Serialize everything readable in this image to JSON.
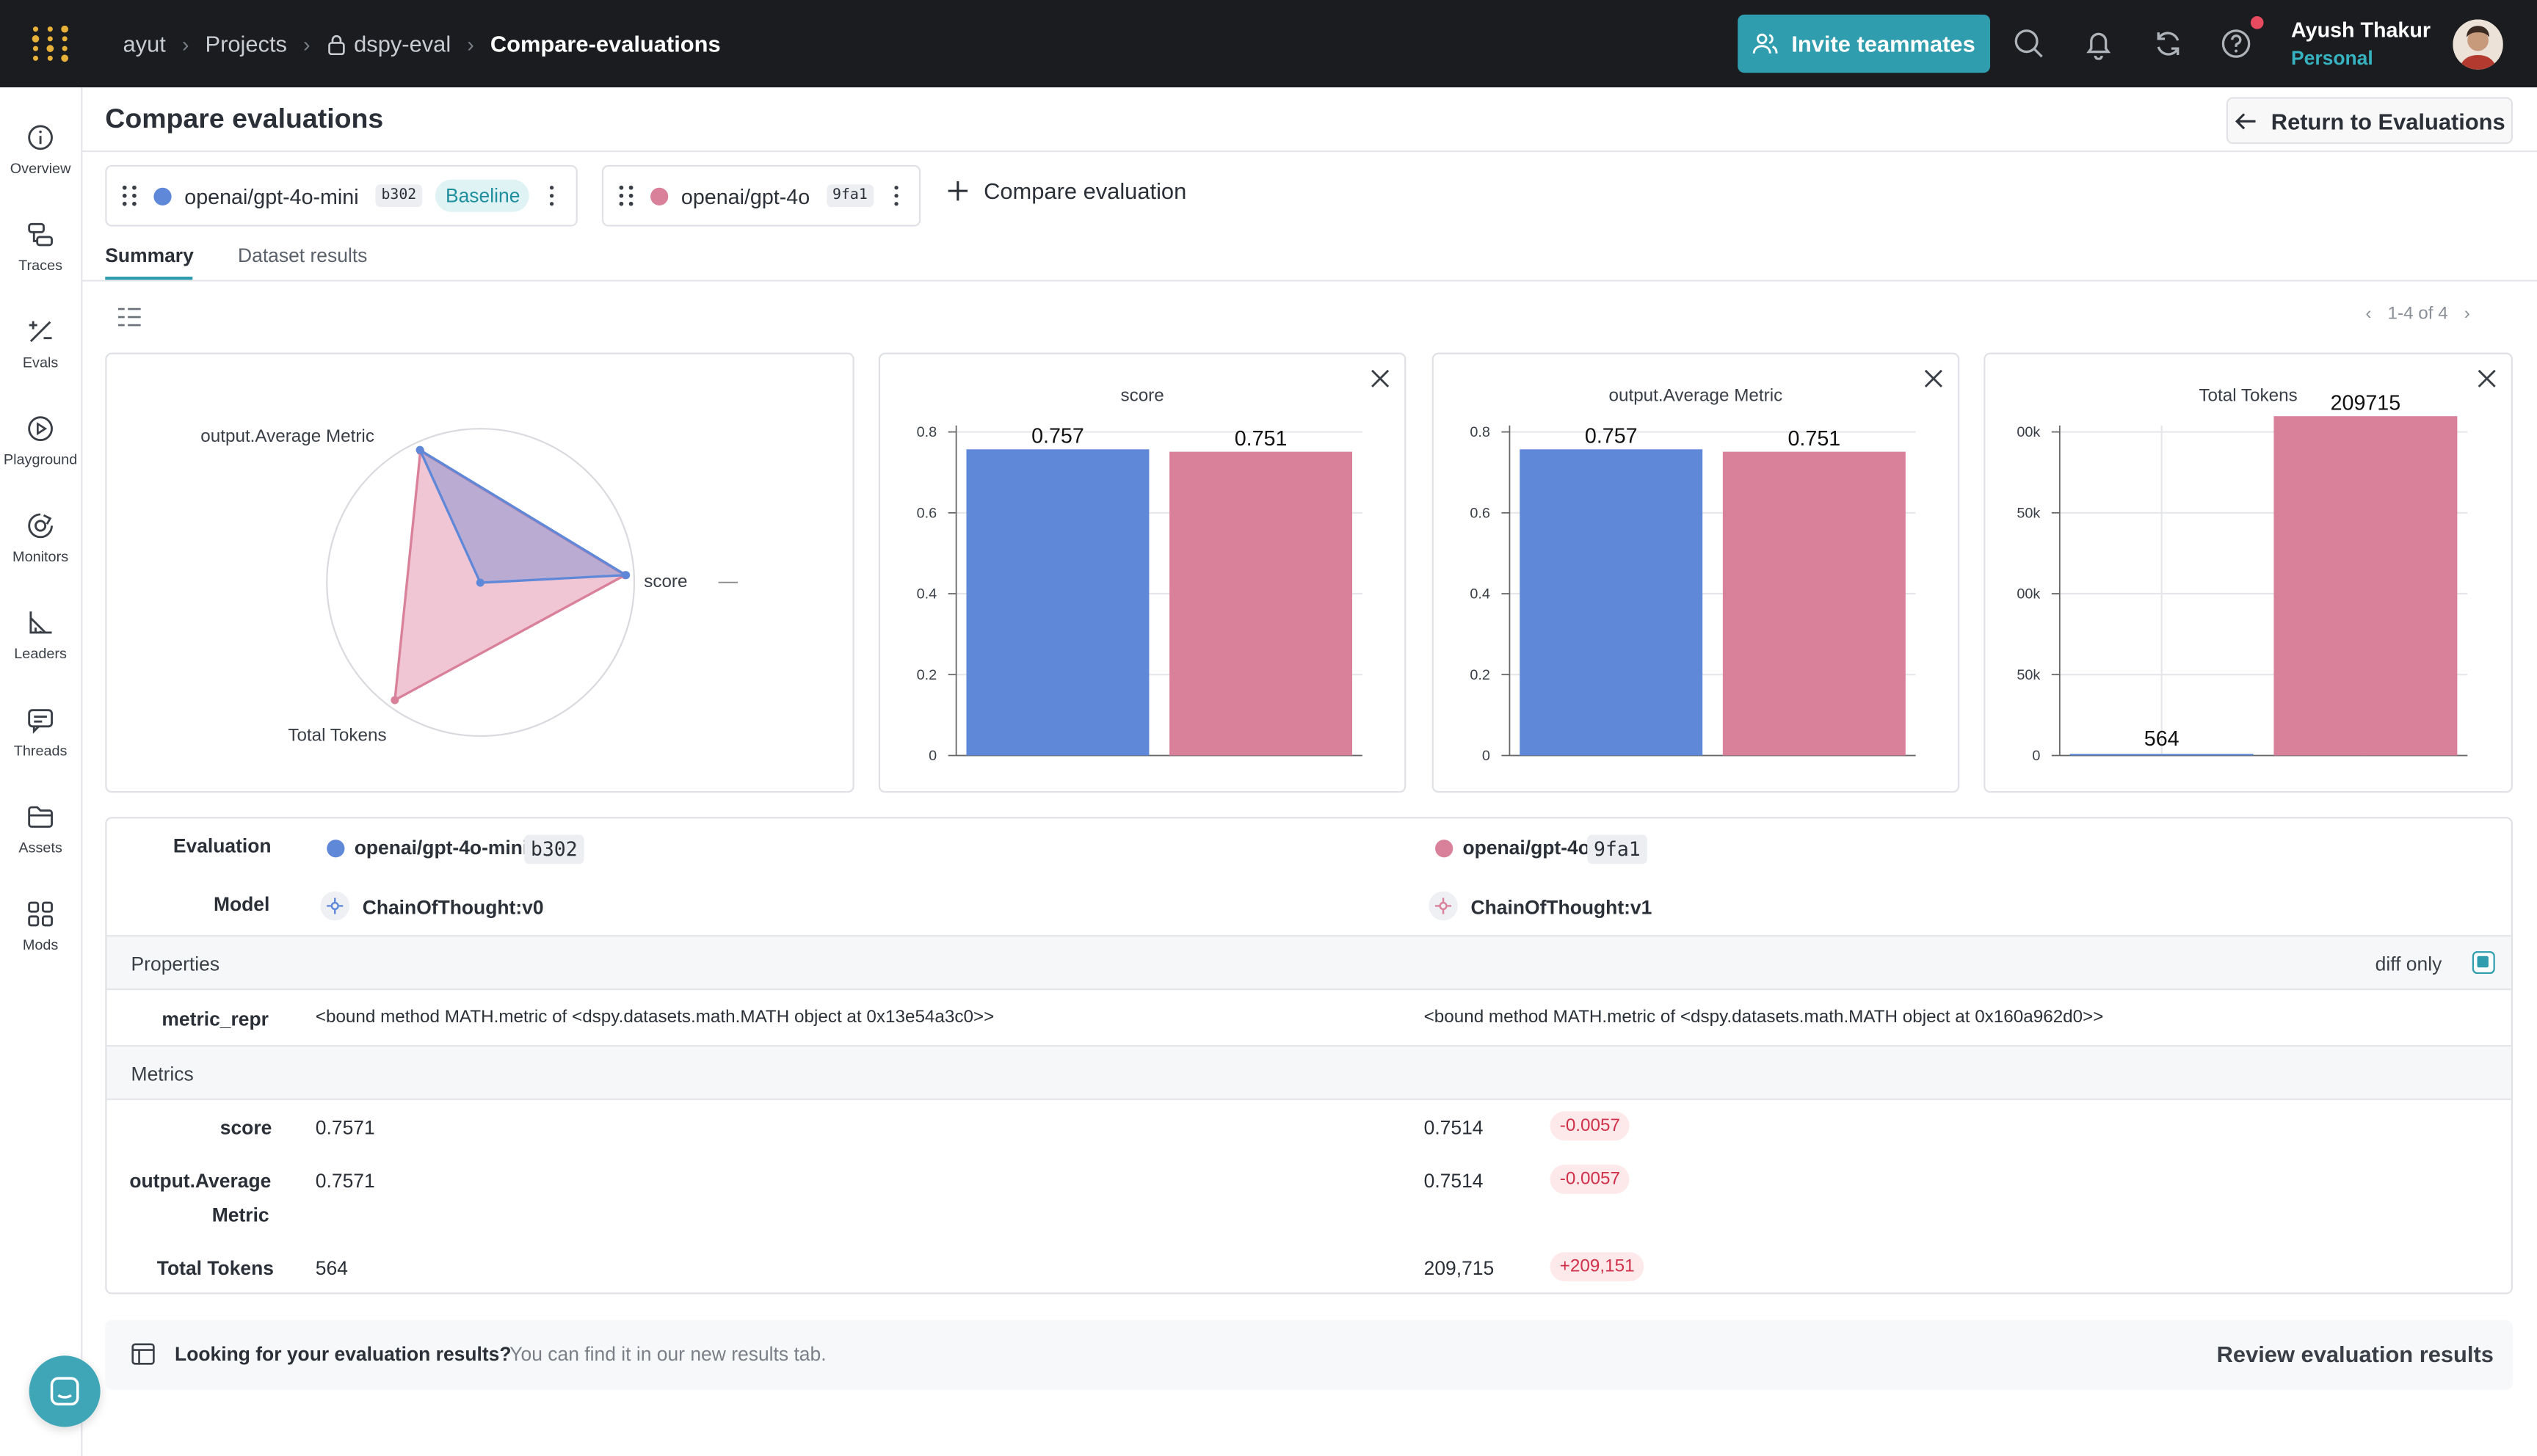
{
  "breadcrumb": {
    "entity": "ayut",
    "projects": "Projects",
    "project": "dspy-eval",
    "current": "Compare-evaluations"
  },
  "topbar": {
    "invite_label": "Invite teammates",
    "user_name": "Ayush Thakur",
    "user_plan": "Personal"
  },
  "sidebar": {
    "items": [
      {
        "label": "Overview",
        "icon": "info-icon"
      },
      {
        "label": "Traces",
        "icon": "traces-icon"
      },
      {
        "label": "Evals",
        "icon": "evals-icon"
      },
      {
        "label": "Playground",
        "icon": "play-icon"
      },
      {
        "label": "Monitors",
        "icon": "monitor-icon"
      },
      {
        "label": "Leaders",
        "icon": "leaderboard-icon"
      },
      {
        "label": "Threads",
        "icon": "threads-icon"
      },
      {
        "label": "Assets",
        "icon": "folder-icon"
      },
      {
        "label": "Mods",
        "icon": "grid-icon"
      }
    ]
  },
  "page": {
    "title": "Compare evaluations",
    "return_label": "Return to Evaluations"
  },
  "evaluations": [
    {
      "name": "openai/gpt-4o-mini",
      "tag": "b302",
      "baseline_label": "Baseline",
      "color": "#6088d8",
      "model": "ChainOfThought:v0"
    },
    {
      "name": "openai/gpt-4o",
      "tag": "9fa1",
      "color": "#d9809b",
      "model": "ChainOfThought:v1"
    }
  ],
  "compare_label": "Compare evaluation",
  "tabs": {
    "summary": "Summary",
    "dataset": "Dataset results"
  },
  "pager": {
    "text": "1-4 of 4"
  },
  "chart_data": [
    {
      "type": "radar",
      "axes": [
        "score",
        "output.Average Metric",
        "Total Tokens"
      ],
      "series": [
        {
          "name": "openai/gpt-4o-mini",
          "values": [
            0.7571,
            0.7571,
            564
          ]
        },
        {
          "name": "openai/gpt-4o",
          "values": [
            0.7514,
            0.7514,
            209715
          ]
        }
      ]
    },
    {
      "type": "bar",
      "title": "score",
      "categories": [
        "openai/gpt-4o-mini",
        "openai/gpt-4o"
      ],
      "values": [
        0.757,
        0.751
      ],
      "ylim": [
        0,
        0.8
      ],
      "yticks": [
        "0",
        "0.2",
        "0.4",
        "0.6",
        "0.8"
      ],
      "labels": [
        "0.757",
        "0.751"
      ]
    },
    {
      "type": "bar",
      "title": "output.Average Metric",
      "categories": [
        "openai/gpt-4o-mini",
        "openai/gpt-4o"
      ],
      "values": [
        0.757,
        0.751
      ],
      "ylim": [
        0,
        0.8
      ],
      "yticks": [
        "0",
        "0.2",
        "0.4",
        "0.6",
        "0.8"
      ],
      "labels": [
        "0.757",
        "0.751"
      ]
    },
    {
      "type": "bar",
      "title": "Total Tokens",
      "categories": [
        "openai/gpt-4o-mini",
        "openai/gpt-4o"
      ],
      "values": [
        564,
        209715
      ],
      "ylim": [
        0,
        200000
      ],
      "ytick_values": [
        0,
        50000,
        100000,
        150000,
        200000
      ],
      "yticks": [
        "0",
        "50k",
        "00k",
        "50k",
        "00k"
      ],
      "labels": [
        "564",
        "209715"
      ]
    }
  ],
  "table": {
    "evaluation_label": "Evaluation",
    "model_label": "Model",
    "properties_label": "Properties",
    "diff_only_label": "diff only",
    "metric_repr_label": "metric_repr",
    "metric_repr_values": [
      "<bound method MATH.metric of <dspy.datasets.math.MATH object at 0x13e54a3c0>>",
      "<bound method MATH.metric of <dspy.datasets.math.MATH object at 0x160a962d0>>"
    ],
    "metrics_label": "Metrics",
    "metrics": [
      {
        "label_line1": "score",
        "label_line2": "",
        "a": "0.7571",
        "b": "0.7514",
        "delta": "-0.0057"
      },
      {
        "label_line1": "output.Average",
        "label_line2": "Metric",
        "a": "0.7571",
        "b": "0.7514",
        "delta": "-0.0057"
      },
      {
        "label_line1": "Total Tokens",
        "label_line2": "",
        "a": "564",
        "b": "209,715",
        "delta": "+209,151"
      }
    ]
  },
  "banner": {
    "title": "Looking for your evaluation results?",
    "text": "You can find it in our new results tab.",
    "action": "Review evaluation results"
  }
}
